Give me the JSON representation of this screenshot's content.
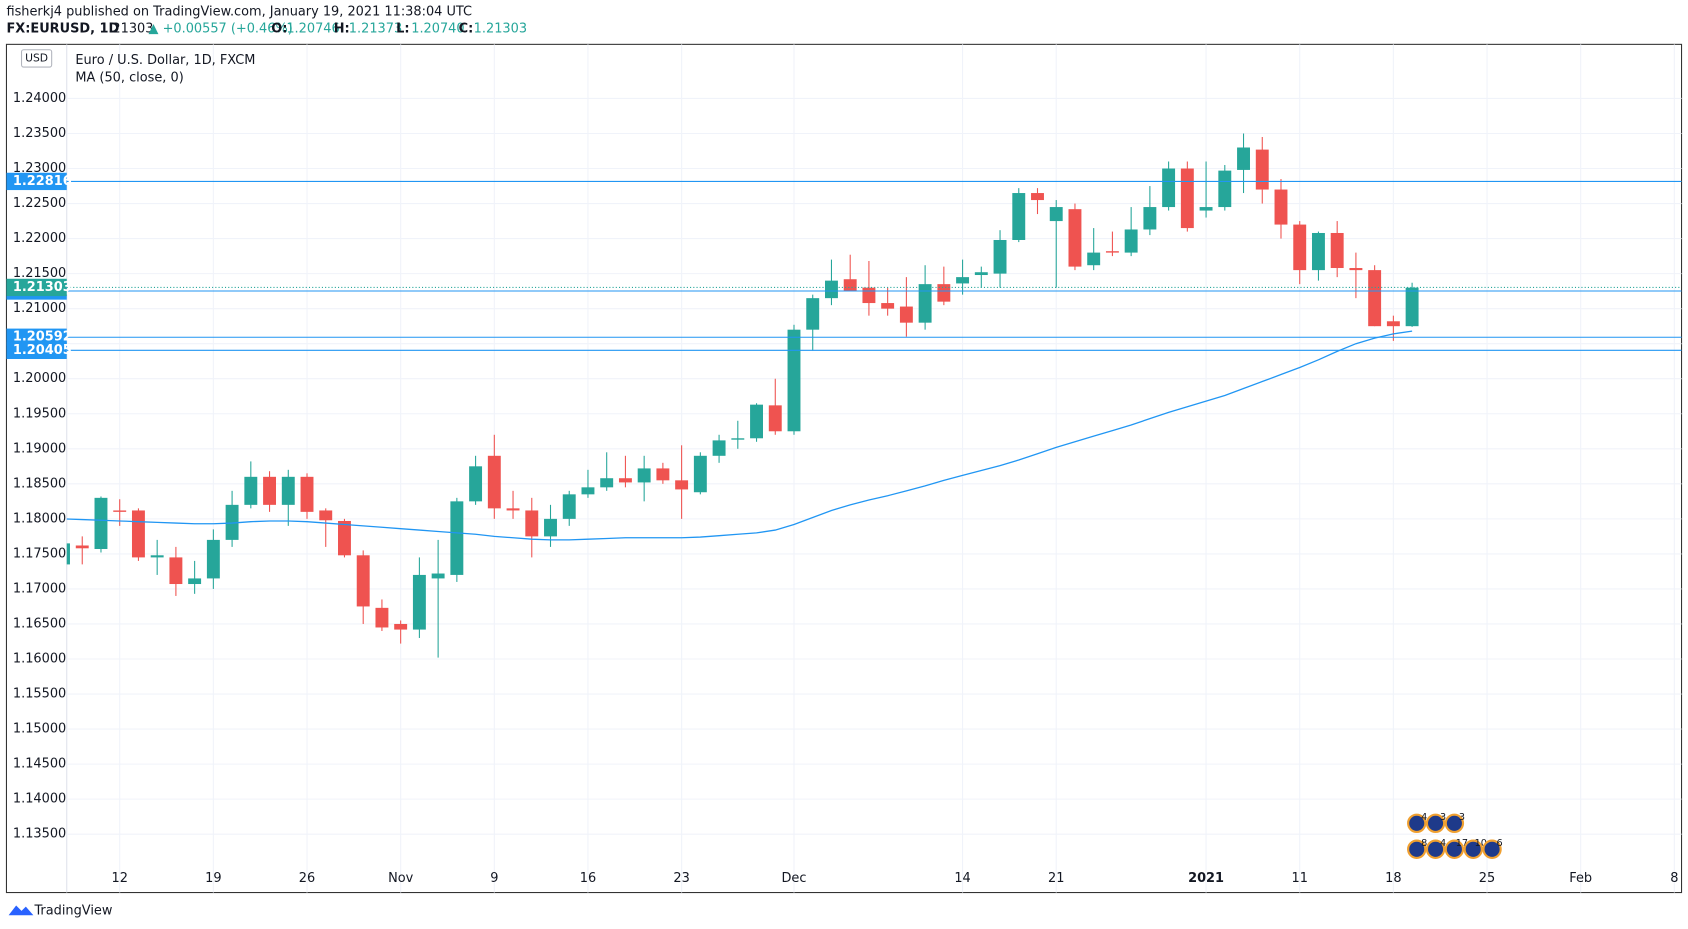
{
  "header": {
    "publisher": "fisherkj4 published on TradingView.com, January 19, 2021 11:38:04 UTC",
    "symbol": "FX:EURUSD, 1D",
    "price": "1.21303",
    "change": "▲ +0.00557 (+0.46%)",
    "ohlc": [
      {
        "label": "O:",
        "value": "1.20746"
      },
      {
        "label": "H:",
        "value": "1.21373"
      },
      {
        "label": "L:",
        "value": "1.20740"
      },
      {
        "label": "C:",
        "value": "1.21303"
      }
    ]
  },
  "footer": {
    "brand": "TradingView"
  },
  "chart_data": {
    "type": "candlestick",
    "title": "Euro / U.S. Dollar, 1D, FXCM",
    "currency": "USD",
    "up_color": "#26a69a",
    "down_color": "#ef5350",
    "open": [
      1.1735,
      1.1762,
      1.1757,
      1.1812,
      1.1812,
      1.1745,
      1.1745,
      1.1707,
      1.1715,
      1.177,
      1.182,
      1.186,
      1.182,
      1.186,
      1.1812,
      1.1797,
      1.1748,
      1.1673,
      1.165,
      1.1642,
      1.1715,
      1.172,
      1.1825,
      1.189,
      1.1815,
      1.1812,
      1.1775,
      1.18,
      1.1835,
      1.1845,
      1.1858,
      1.1852,
      1.1872,
      1.1855,
      1.1838,
      1.189,
      1.1913,
      1.1915,
      1.1962,
      1.1925,
      1.207,
      1.2115,
      1.2142,
      1.213,
      1.2108,
      1.2103,
      1.208,
      1.2135,
      1.2136,
      1.2148,
      1.215,
      1.2198,
      1.2265,
      1.2225,
      1.2242,
      1.2162,
      1.2182,
      1.218,
      1.2213,
      1.2245,
      1.23,
      1.224,
      1.2245,
      1.2298,
      1.2327,
      1.227,
      1.222,
      1.2155,
      1.2208,
      1.2158,
      1.2155,
      1.2082,
      1.2075
    ],
    "high": [
      1.1768,
      1.1775,
      1.1832,
      1.1828,
      1.1815,
      1.177,
      1.176,
      1.174,
      1.1785,
      1.184,
      1.1882,
      1.1868,
      1.187,
      1.1865,
      1.1815,
      1.18,
      1.1755,
      1.1685,
      1.1655,
      1.1745,
      1.177,
      1.183,
      1.189,
      1.192,
      1.184,
      1.183,
      1.182,
      1.184,
      1.187,
      1.1895,
      1.189,
      1.189,
      1.188,
      1.1905,
      1.1895,
      1.192,
      1.194,
      1.1965,
      1.2,
      1.2077,
      1.212,
      1.217,
      1.2177,
      1.2168,
      1.213,
      1.2145,
      1.2162,
      1.216,
      1.217,
      1.216,
      1.2212,
      1.2272,
      1.2272,
      1.2255,
      1.225,
      1.2215,
      1.221,
      1.2245,
      1.2275,
      1.231,
      1.231,
      1.231,
      1.2305,
      1.235,
      1.2345,
      1.2285,
      1.2225,
      1.221,
      1.2225,
      1.218,
      1.2162,
      1.209,
      1.2137
    ],
    "low": [
      1.173,
      1.1735,
      1.1752,
      1.179,
      1.174,
      1.172,
      1.169,
      1.1693,
      1.17,
      1.176,
      1.1815,
      1.181,
      1.179,
      1.18,
      1.176,
      1.1745,
      1.165,
      1.164,
      1.1622,
      1.163,
      1.1602,
      1.171,
      1.182,
      1.18,
      1.18,
      1.1745,
      1.176,
      1.179,
      1.183,
      1.184,
      1.1845,
      1.1825,
      1.185,
      1.18,
      1.1835,
      1.188,
      1.19,
      1.191,
      1.192,
      1.192,
      1.204,
      1.2105,
      1.2125,
      1.209,
      1.209,
      1.206,
      1.207,
      1.2105,
      1.212,
      1.213,
      1.213,
      1.2195,
      1.2235,
      1.213,
      1.2155,
      1.2155,
      1.2175,
      1.2175,
      1.2205,
      1.224,
      1.221,
      1.223,
      1.224,
      1.2265,
      1.225,
      1.22,
      1.2135,
      1.214,
      1.2145,
      1.2115,
      1.2075,
      1.2054,
      1.2074
    ],
    "close": [
      1.1765,
      1.1758,
      1.183,
      1.181,
      1.1745,
      1.1748,
      1.1707,
      1.1715,
      1.177,
      1.182,
      1.186,
      1.182,
      1.186,
      1.181,
      1.1798,
      1.1748,
      1.1675,
      1.1645,
      1.1642,
      1.172,
      1.1722,
      1.1825,
      1.1875,
      1.1815,
      1.1812,
      1.1775,
      1.18,
      1.1835,
      1.1845,
      1.1858,
      1.1852,
      1.1872,
      1.1855,
      1.1842,
      1.189,
      1.1912,
      1.1915,
      1.1963,
      1.1925,
      1.207,
      1.2115,
      1.214,
      1.2125,
      1.2108,
      1.21,
      1.208,
      1.2135,
      1.211,
      1.2145,
      1.2152,
      1.2198,
      1.2265,
      1.2255,
      1.2245,
      1.216,
      1.218,
      1.218,
      1.2213,
      1.2245,
      1.23,
      1.2215,
      1.2245,
      1.2297,
      1.233,
      1.227,
      1.222,
      1.2155,
      1.2208,
      1.2158,
      1.2155,
      1.2075,
      1.2075,
      1.213
    ],
    "indicator": {
      "name": "MA (50, close, 0)",
      "color": "#2196f3",
      "values": [
        1.18,
        1.1799,
        1.1798,
        1.1797,
        1.1796,
        1.1795,
        1.1794,
        1.1793,
        1.1793,
        1.1794,
        1.1796,
        1.1797,
        1.1797,
        1.1796,
        1.1794,
        1.1792,
        1.179,
        1.1788,
        1.1786,
        1.1784,
        1.1782,
        1.178,
        1.1778,
        1.1775,
        1.1773,
        1.1771,
        1.177,
        1.177,
        1.1771,
        1.1772,
        1.1773,
        1.1773,
        1.1773,
        1.1773,
        1.1774,
        1.1776,
        1.1778,
        1.178,
        1.1784,
        1.1792,
        1.1802,
        1.1812,
        1.182,
        1.1827,
        1.1833,
        1.184,
        1.1847,
        1.1855,
        1.1862,
        1.1869,
        1.1876,
        1.1884,
        1.1893,
        1.1902,
        1.191,
        1.1918,
        1.1926,
        1.1934,
        1.1943,
        1.1952,
        1.196,
        1.1968,
        1.1976,
        1.1986,
        1.1996,
        1.2006,
        1.2016,
        1.2027,
        1.2039,
        1.205,
        1.2058,
        1.2064,
        1.2068
      ]
    },
    "price_lines": {
      "color": "#2196f3",
      "values": [
        1.22816,
        1.21252,
        1.20592,
        1.20405
      ]
    },
    "last_price": {
      "value": 1.21303,
      "label": "1.21303",
      "color": "#26a69a"
    },
    "xlim": [
      0,
      86.5
    ],
    "ylim": [
      1.12667,
      1.24772
    ],
    "xticks": [
      {
        "value": 3,
        "label": "12"
      },
      {
        "value": 8,
        "label": "19"
      },
      {
        "value": 13,
        "label": "26"
      },
      {
        "value": 18,
        "label": "Nov"
      },
      {
        "value": 23,
        "label": "9"
      },
      {
        "value": 28,
        "label": "16"
      },
      {
        "value": 33,
        "label": "23"
      },
      {
        "value": 39,
        "label": "Dec"
      },
      {
        "value": 48,
        "label": "14"
      },
      {
        "value": 53,
        "label": "21"
      },
      {
        "value": 61,
        "label": "2021"
      },
      {
        "value": 66,
        "label": "11"
      },
      {
        "value": 71,
        "label": "18"
      },
      {
        "value": 76,
        "label": "25"
      },
      {
        "value": 81,
        "label": "Feb"
      },
      {
        "value": 86,
        "label": "8"
      }
    ],
    "yticks": [
      {
        "value": 1.135,
        "label": "1.13500"
      },
      {
        "value": 1.14,
        "label": "1.14000"
      },
      {
        "value": 1.145,
        "label": "1.14500"
      },
      {
        "value": 1.15,
        "label": "1.15000"
      },
      {
        "value": 1.155,
        "label": "1.15500"
      },
      {
        "value": 1.16,
        "label": "1.16000"
      },
      {
        "value": 1.165,
        "label": "1.16500"
      },
      {
        "value": 1.17,
        "label": "1.17000"
      },
      {
        "value": 1.175,
        "label": "1.17500"
      },
      {
        "value": 1.18,
        "label": "1.18000"
      },
      {
        "value": 1.185,
        "label": "1.18500"
      },
      {
        "value": 1.19,
        "label": "1.19000"
      },
      {
        "value": 1.195,
        "label": "1.19500"
      },
      {
        "value": 1.2,
        "label": "1.20000"
      },
      {
        "value": 1.205,
        "label": "1.20500"
      },
      {
        "value": 1.21,
        "label": "1.21000"
      },
      {
        "value": 1.215,
        "label": "1.21500"
      },
      {
        "value": 1.22,
        "label": "1.22000"
      },
      {
        "value": 1.225,
        "label": "1.22500"
      },
      {
        "value": 1.23,
        "label": "1.23000"
      },
      {
        "value": 1.235,
        "label": "1.23500"
      },
      {
        "value": 1.24,
        "label": "1.24000"
      }
    ],
    "grid": true,
    "events": [
      [
        4,
        3,
        3
      ],
      [
        8,
        4,
        17,
        10,
        6
      ]
    ]
  }
}
